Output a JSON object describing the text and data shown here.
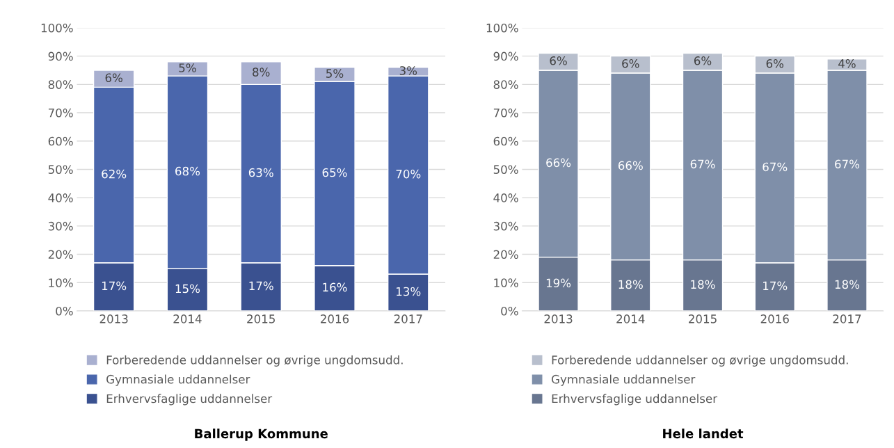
{
  "chart_data": [
    {
      "type": "bar",
      "title": "Ballerup Kommune",
      "stacked": true,
      "categories": [
        "2013",
        "2014",
        "2015",
        "2016",
        "2017"
      ],
      "series": [
        {
          "name": "Erhvervsfaglige uddannelser",
          "color": "#3a5190",
          "values": [
            17,
            15,
            17,
            16,
            13
          ],
          "value_labels": [
            "17%",
            "15%",
            "17%",
            "16%",
            "13%"
          ]
        },
        {
          "name": "Gymnasiale uddannelser",
          "color": "#4a66ac",
          "values": [
            62,
            68,
            63,
            65,
            70
          ],
          "value_labels": [
            "62%",
            "68%",
            "63%",
            "65%",
            "70%"
          ]
        },
        {
          "name": "Forberedende uddannelser og øvrige ungdomsudd.",
          "color": "#a9b0d0",
          "values": [
            6,
            5,
            8,
            5,
            3
          ],
          "value_labels": [
            "6%",
            "5%",
            "8%",
            "5%",
            "3%"
          ]
        }
      ],
      "ylim": [
        0,
        100
      ],
      "yticks": [
        {
          "value": 0,
          "label": "0%"
        },
        {
          "value": 10,
          "label": "10%"
        },
        {
          "value": 20,
          "label": "20%"
        },
        {
          "value": 30,
          "label": "30%"
        },
        {
          "value": 40,
          "label": "40%"
        },
        {
          "value": 50,
          "label": "50%"
        },
        {
          "value": 60,
          "label": "60%"
        },
        {
          "value": 70,
          "label": "70%"
        },
        {
          "value": 80,
          "label": "80%"
        },
        {
          "value": 90,
          "label": "90%"
        },
        {
          "value": 100,
          "label": "100%"
        }
      ],
      "grid": "y",
      "legend": "bottom"
    },
    {
      "type": "bar",
      "title": "Hele landet",
      "stacked": true,
      "categories": [
        "2013",
        "2014",
        "2015",
        "2016",
        "2017"
      ],
      "series": [
        {
          "name": "Erhvervsfaglige uddannelser",
          "color": "#687690",
          "values": [
            19,
            18,
            18,
            17,
            18
          ],
          "value_labels": [
            "19%",
            "18%",
            "18%",
            "17%",
            "18%"
          ]
        },
        {
          "name": "Gymnasiale uddannelser",
          "color": "#7f8fa9",
          "values": [
            66,
            66,
            67,
            67,
            67
          ],
          "value_labels": [
            "66%",
            "66%",
            "67%",
            "67%",
            "67%"
          ]
        },
        {
          "name": "Forberedende uddannelser og øvrige ungdomsudd.",
          "color": "#b8bfcd",
          "values": [
            6,
            6,
            6,
            6,
            4
          ],
          "value_labels": [
            "6%",
            "6%",
            "6%",
            "6%",
            "4%"
          ]
        }
      ],
      "ylim": [
        0,
        100
      ],
      "yticks": [
        {
          "value": 0,
          "label": "0%"
        },
        {
          "value": 10,
          "label": "10%"
        },
        {
          "value": 20,
          "label": "20%"
        },
        {
          "value": 30,
          "label": "30%"
        },
        {
          "value": 40,
          "label": "40%"
        },
        {
          "value": 50,
          "label": "50%"
        },
        {
          "value": 60,
          "label": "60%"
        },
        {
          "value": 70,
          "label": "70%"
        },
        {
          "value": 80,
          "label": "80%"
        },
        {
          "value": 90,
          "label": "90%"
        },
        {
          "value": 100,
          "label": "100%"
        }
      ],
      "grid": "y",
      "legend": "bottom"
    }
  ]
}
